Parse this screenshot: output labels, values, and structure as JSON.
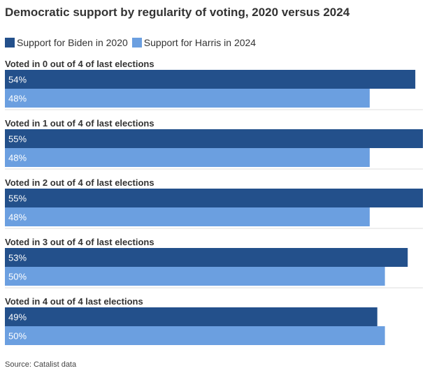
{
  "title": "Democratic support by regularity of voting, 2020 versus 2024",
  "source": "Source: Catalist data",
  "colors": {
    "biden": "#23508b",
    "harris": "#6b9fe0",
    "divider": "#dddddd"
  },
  "chart_data": {
    "type": "bar",
    "orientation": "horizontal",
    "title": "Democratic support by regularity of voting, 2020 versus 2024",
    "categories": [
      "Voted in 0 out of 4 of last elections",
      "Voted in 1 out of 4 of last elections",
      "Voted in 2 out of 4 of last elections",
      "Voted in 3 out of 4 of last elections",
      "Voted in 4 out of 4 last elections"
    ],
    "series": [
      {
        "name": "Support for Biden in 2020",
        "values": [
          54,
          55,
          55,
          53,
          49
        ],
        "labels": [
          "54%",
          "55%",
          "55%",
          "53%",
          "49%"
        ]
      },
      {
        "name": "Support for Harris in 2024",
        "values": [
          48,
          48,
          48,
          50,
          50
        ],
        "labels": [
          "48%",
          "48%",
          "48%",
          "50%",
          "50%"
        ]
      }
    ],
    "xlim": [
      0,
      55
    ],
    "legend": "top-left",
    "grid": false
  }
}
